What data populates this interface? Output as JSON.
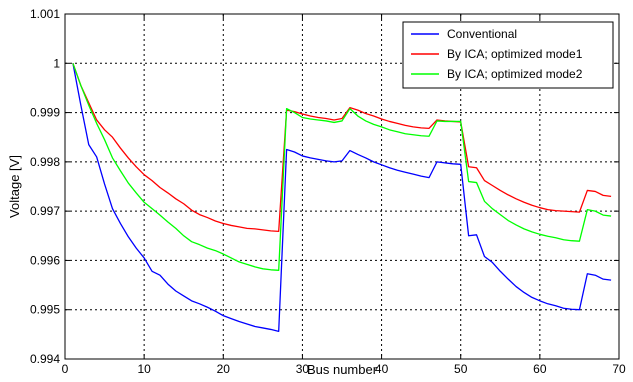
{
  "chart_data": {
    "type": "line",
    "title": "",
    "xlabel": "Bus number",
    "ylabel": "Voltage [V]",
    "xlim": [
      0,
      70
    ],
    "ylim": [
      0.994,
      1.001
    ],
    "xticks": [
      0,
      10,
      20,
      30,
      40,
      50,
      60,
      70
    ],
    "xtick_labels": [
      "0",
      "10",
      "20",
      "30",
      "40",
      "50",
      "60",
      "70"
    ],
    "yticks": [
      0.994,
      0.995,
      0.996,
      0.997,
      0.998,
      0.999,
      1.0,
      1.001
    ],
    "ytick_labels": [
      "0.994",
      "0.995",
      "0.996",
      "0.997",
      "0.998",
      "0.999",
      "1",
      "1.001"
    ],
    "grid": true,
    "legend_position": "top-right",
    "series": [
      {
        "name": "Conventional",
        "color": "#0000ff",
        "points": [
          [
            1,
            1.0
          ],
          [
            2,
            0.99915
          ],
          [
            3,
            0.99835
          ],
          [
            4,
            0.9981
          ],
          [
            5,
            0.99755
          ],
          [
            6,
            0.99705
          ],
          [
            7,
            0.99675
          ],
          [
            8,
            0.99648
          ],
          [
            9,
            0.99625
          ],
          [
            10,
            0.99605
          ],
          [
            11,
            0.99578
          ],
          [
            12,
            0.9957
          ],
          [
            13,
            0.99552
          ],
          [
            14,
            0.99538
          ],
          [
            15,
            0.99528
          ],
          [
            16,
            0.99518
          ],
          [
            17,
            0.99512
          ],
          [
            18,
            0.99505
          ],
          [
            19,
            0.99497
          ],
          [
            20,
            0.99488
          ],
          [
            21,
            0.99482
          ],
          [
            22,
            0.99476
          ],
          [
            23,
            0.99471
          ],
          [
            24,
            0.99466
          ],
          [
            25,
            0.99463
          ],
          [
            26,
            0.9946
          ],
          [
            27,
            0.99456
          ],
          [
            28,
            0.99825
          ],
          [
            29,
            0.9982
          ],
          [
            30,
            0.99812
          ],
          [
            31,
            0.99808
          ],
          [
            32,
            0.99805
          ],
          [
            33,
            0.99802
          ],
          [
            34,
            0.998
          ],
          [
            35,
            0.99802
          ],
          [
            36,
            0.99823
          ],
          [
            37,
            0.99815
          ],
          [
            38,
            0.99808
          ],
          [
            39,
            0.998
          ],
          [
            40,
            0.99794
          ],
          [
            41,
            0.99788
          ],
          [
            42,
            0.99783
          ],
          [
            43,
            0.99779
          ],
          [
            44,
            0.99775
          ],
          [
            45,
            0.99771
          ],
          [
            46,
            0.99768
          ],
          [
            47,
            0.998
          ],
          [
            48,
            0.99798
          ],
          [
            49,
            0.99796
          ],
          [
            50,
            0.99795
          ],
          [
            51,
            0.9965
          ],
          [
            52,
            0.99652
          ],
          [
            53,
            0.99608
          ],
          [
            54,
            0.99596
          ],
          [
            55,
            0.99578
          ],
          [
            56,
            0.99562
          ],
          [
            57,
            0.99547
          ],
          [
            58,
            0.99535
          ],
          [
            59,
            0.99525
          ],
          [
            60,
            0.99518
          ],
          [
            61,
            0.99512
          ],
          [
            62,
            0.99508
          ],
          [
            63,
            0.99503
          ],
          [
            64,
            0.99501
          ],
          [
            65,
            0.995
          ],
          [
            66,
            0.99573
          ],
          [
            67,
            0.9957
          ],
          [
            68,
            0.99562
          ],
          [
            69,
            0.9956
          ]
        ]
      },
      {
        "name": "By ICA; optimized mode1",
        "color": "#ff0000",
        "points": [
          [
            1,
            1.0
          ],
          [
            2,
            0.99955
          ],
          [
            3,
            0.9992
          ],
          [
            4,
            0.99885
          ],
          [
            5,
            0.99865
          ],
          [
            6,
            0.9985
          ],
          [
            7,
            0.99828
          ],
          [
            8,
            0.99808
          ],
          [
            9,
            0.9979
          ],
          [
            10,
            0.99774
          ],
          [
            11,
            0.99762
          ],
          [
            12,
            0.99748
          ],
          [
            13,
            0.99737
          ],
          [
            14,
            0.99725
          ],
          [
            15,
            0.99715
          ],
          [
            16,
            0.99702
          ],
          [
            17,
            0.99693
          ],
          [
            18,
            0.99687
          ],
          [
            19,
            0.9968
          ],
          [
            20,
            0.99675
          ],
          [
            21,
            0.99671
          ],
          [
            22,
            0.99668
          ],
          [
            23,
            0.99665
          ],
          [
            24,
            0.99664
          ],
          [
            25,
            0.99662
          ],
          [
            26,
            0.9966
          ],
          [
            27,
            0.99659
          ],
          [
            28,
            0.99905
          ],
          [
            29,
            0.99902
          ],
          [
            30,
            0.99897
          ],
          [
            31,
            0.99893
          ],
          [
            32,
            0.9989
          ],
          [
            33,
            0.99888
          ],
          [
            34,
            0.99885
          ],
          [
            35,
            0.99888
          ],
          [
            36,
            0.9991
          ],
          [
            37,
            0.99905
          ],
          [
            38,
            0.99898
          ],
          [
            39,
            0.99893
          ],
          [
            40,
            0.99887
          ],
          [
            41,
            0.99882
          ],
          [
            42,
            0.99878
          ],
          [
            43,
            0.99874
          ],
          [
            44,
            0.99871
          ],
          [
            45,
            0.99869
          ],
          [
            46,
            0.99868
          ],
          [
            47,
            0.99885
          ],
          [
            48,
            0.99883
          ],
          [
            49,
            0.99882
          ],
          [
            50,
            0.99881
          ],
          [
            51,
            0.9979
          ],
          [
            52,
            0.99788
          ],
          [
            53,
            0.99762
          ],
          [
            54,
            0.99752
          ],
          [
            55,
            0.99742
          ],
          [
            56,
            0.99733
          ],
          [
            57,
            0.99725
          ],
          [
            58,
            0.99718
          ],
          [
            59,
            0.99712
          ],
          [
            60,
            0.99707
          ],
          [
            61,
            0.99703
          ],
          [
            62,
            0.99701
          ],
          [
            63,
            0.997
          ],
          [
            64,
            0.99699
          ],
          [
            65,
            0.99698
          ],
          [
            66,
            0.99742
          ],
          [
            67,
            0.9974
          ],
          [
            68,
            0.99732
          ],
          [
            69,
            0.9973
          ]
        ]
      },
      {
        "name": "By ICA; optimized mode2",
        "color": "#00ff00",
        "points": [
          [
            1,
            1.0
          ],
          [
            2,
            0.99955
          ],
          [
            3,
            0.99915
          ],
          [
            4,
            0.99878
          ],
          [
            5,
            0.99845
          ],
          [
            6,
            0.99808
          ],
          [
            7,
            0.99782
          ],
          [
            8,
            0.99757
          ],
          [
            9,
            0.99737
          ],
          [
            10,
            0.99718
          ],
          [
            11,
            0.99705
          ],
          [
            12,
            0.99692
          ],
          [
            13,
            0.99678
          ],
          [
            14,
            0.99665
          ],
          [
            15,
            0.9965
          ],
          [
            16,
            0.99638
          ],
          [
            17,
            0.99632
          ],
          [
            18,
            0.99625
          ],
          [
            19,
            0.9962
          ],
          [
            20,
            0.99613
          ],
          [
            21,
            0.99605
          ],
          [
            22,
            0.99597
          ],
          [
            23,
            0.99592
          ],
          [
            24,
            0.99587
          ],
          [
            25,
            0.99583
          ],
          [
            26,
            0.99581
          ],
          [
            27,
            0.9958
          ],
          [
            28,
            0.99908
          ],
          [
            29,
            0.999
          ],
          [
            30,
            0.9989
          ],
          [
            31,
            0.99887
          ],
          [
            32,
            0.99885
          ],
          [
            33,
            0.99883
          ],
          [
            34,
            0.9988
          ],
          [
            35,
            0.99883
          ],
          [
            36,
            0.99908
          ],
          [
            37,
            0.99893
          ],
          [
            38,
            0.99883
          ],
          [
            39,
            0.99876
          ],
          [
            40,
            0.99871
          ],
          [
            41,
            0.99865
          ],
          [
            42,
            0.99861
          ],
          [
            43,
            0.99857
          ],
          [
            44,
            0.99855
          ],
          [
            45,
            0.99853
          ],
          [
            46,
            0.99852
          ],
          [
            47,
            0.99883
          ],
          [
            48,
            0.99882
          ],
          [
            49,
            0.99882
          ],
          [
            50,
            0.99882
          ],
          [
            51,
            0.9976
          ],
          [
            52,
            0.99758
          ],
          [
            53,
            0.9972
          ],
          [
            54,
            0.99705
          ],
          [
            55,
            0.99693
          ],
          [
            56,
            0.99681
          ],
          [
            57,
            0.99672
          ],
          [
            58,
            0.99664
          ],
          [
            59,
            0.99658
          ],
          [
            60,
            0.99653
          ],
          [
            61,
            0.99649
          ],
          [
            62,
            0.99646
          ],
          [
            63,
            0.99642
          ],
          [
            64,
            0.9964
          ],
          [
            65,
            0.99639
          ],
          [
            66,
            0.99703
          ],
          [
            67,
            0.997
          ],
          [
            68,
            0.99692
          ],
          [
            69,
            0.9969
          ]
        ]
      }
    ]
  }
}
